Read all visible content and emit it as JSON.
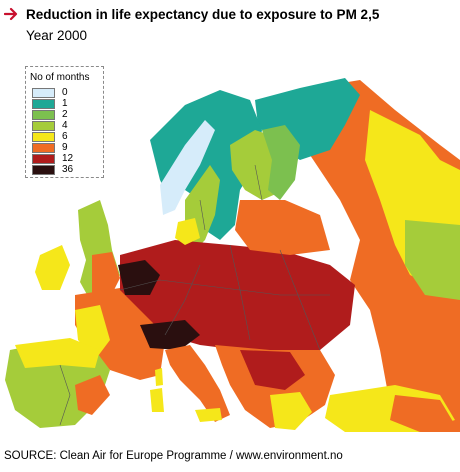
{
  "header": {
    "title": "Reduction in life expectancy due to exposure to PM 2,5",
    "subtitle": "Year 2000",
    "arrow_icon": "right-arrow-icon",
    "arrow_color": "#c8102e"
  },
  "legend": {
    "title": "No of months",
    "items": [
      {
        "label": "0",
        "color": "#d6ecfa"
      },
      {
        "label": "1",
        "color": "#1ea896"
      },
      {
        "label": "2",
        "color": "#7cc04f"
      },
      {
        "label": "4",
        "color": "#a5cc3a"
      },
      {
        "label": "6",
        "color": "#f5e71a"
      },
      {
        "label": "9",
        "color": "#ef6c24"
      },
      {
        "label": "12",
        "color": "#b01c1c"
      },
      {
        "label": "36",
        "color": "#2a0f0f"
      }
    ]
  },
  "map": {
    "sea_color": "#ffffff",
    "border_color": "#555555"
  },
  "footer": {
    "source": "SOURCE: Clean Air for Europe Programme / www.environment.no"
  }
}
